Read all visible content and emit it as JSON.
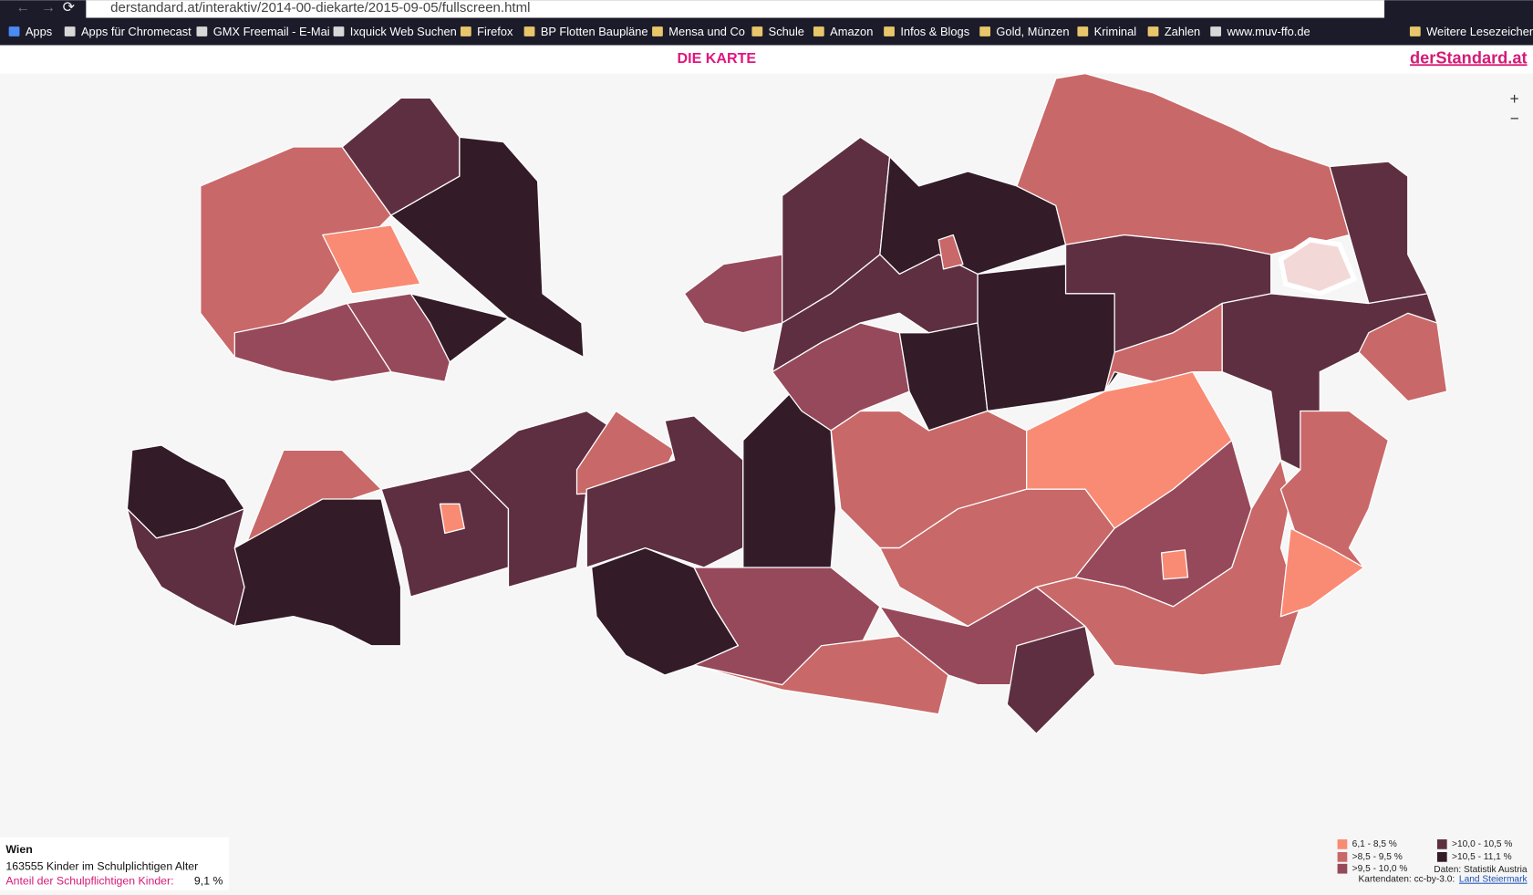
{
  "browser": {
    "url": "derstandard.at/interaktiv/2014-00-diekarte/2015-09-05/fullscreen.html",
    "bookmarks": [
      "Apps",
      "Apps für Chromecast",
      "GMX Freemail - E-Mai",
      "Ixquick Web Suchen",
      "Firefox",
      "BP Flotten Baupläne",
      "Mensa und Co",
      "Schule",
      "Amazon",
      "Infos & Blogs",
      "Gold, Münzen",
      "Kriminal",
      "Zahlen",
      "www.muv-ffo.de",
      "Weitere Lesezeichen"
    ]
  },
  "header": {
    "title": "DIE KARTE",
    "logo": "derStandard.at"
  },
  "zoom": [
    "+",
    "−"
  ],
  "info": {
    "region": "Wien",
    "count_text": "163555 Kinder im Schulplichtigen Alter",
    "share_label": "Anteil der Schulpflichtigen Kinder:",
    "share_value": "9,1 %"
  },
  "legend": [
    {
      "label": "6,1 - 8,5 %",
      "color": "#f98b75"
    },
    {
      "label": ">8,5 - 9,5 %",
      "color": "#c96868"
    },
    {
      "label": ">9,5 - 10,0 %",
      "color": "#96495a"
    },
    {
      "label": ">10,0 - 10,5 %",
      "color": "#5e2f40"
    },
    {
      "label": ">10,5 - 11,1 %",
      "color": "#331b28"
    }
  ],
  "credits": {
    "data": "Daten: Statistik Austria",
    "map": "Kartendaten: cc-by-3.0:",
    "link": "Land Steiermark"
  }
}
